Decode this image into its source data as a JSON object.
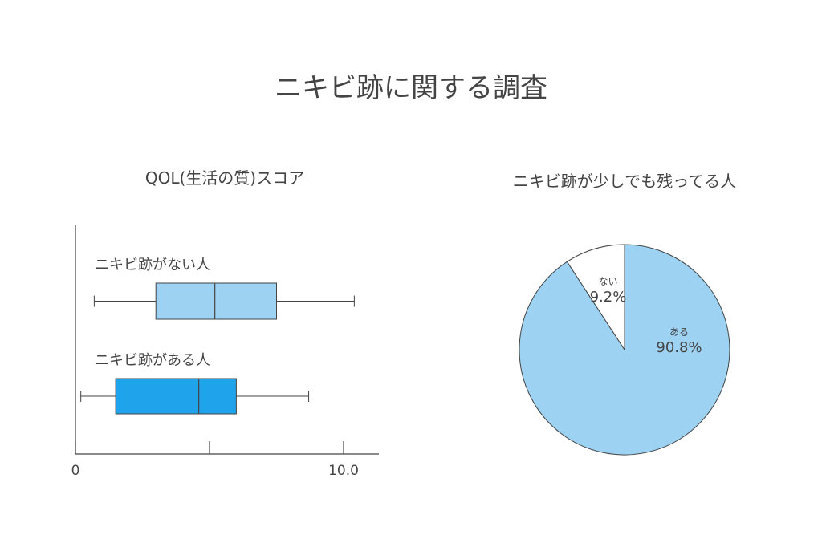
{
  "title": "ニキビ跡に関する調査",
  "colors": {
    "light_blue": "#9dd2f3",
    "blue": "#1fa3ea",
    "white": "#ffffff",
    "line": "#444444"
  },
  "chart_data": [
    {
      "type": "box",
      "title": "QOL(生活の質)スコア",
      "xlim": [
        0,
        11.3
      ],
      "xticks": [
        0,
        5,
        10
      ],
      "xtick_labels": [
        "0",
        "",
        "10.0"
      ],
      "series": [
        {
          "name": "ニキビ跡がない人",
          "min": 0.7,
          "q1": 3.0,
          "median": 5.2,
          "q3": 7.5,
          "max": 10.4,
          "color": "#9dd2f3"
        },
        {
          "name": "ニキビ跡がある人",
          "min": 0.2,
          "q1": 1.5,
          "median": 4.6,
          "q3": 6.0,
          "max": 8.7,
          "color": "#1fa3ea"
        }
      ]
    },
    {
      "type": "pie",
      "title": "ニキビ跡が少しでも残ってる人",
      "slices": [
        {
          "label": "ない",
          "value": 9.2,
          "value_label": "9.2%",
          "color": "#ffffff"
        },
        {
          "label": "ある",
          "value": 90.8,
          "value_label": "90.8%",
          "color": "#9dd2f3"
        }
      ]
    }
  ]
}
